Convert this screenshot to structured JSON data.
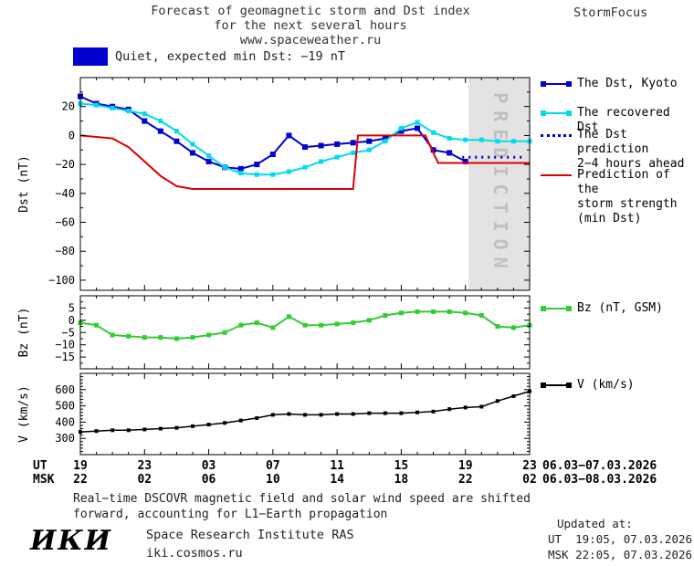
{
  "header": {
    "title_line1": "Forecast of geomagnetic storm and Dst index",
    "title_line2": "for the next several hours",
    "title_line3": "www.spaceweather.ru",
    "brand": "StormFocus"
  },
  "status": {
    "label": "Quiet, expected min Dst: −19 nT",
    "swatch_color": "#0000d0"
  },
  "xaxis": {
    "ut_label": "UT",
    "msk_label": "MSK",
    "tick_hours": [
      0,
      4,
      8,
      12,
      16,
      20,
      24,
      28
    ],
    "ut_ticks": [
      "19",
      "23",
      "03",
      "07",
      "11",
      "15",
      "19",
      "23"
    ],
    "msk_ticks": [
      "22",
      "02",
      "06",
      "10",
      "14",
      "18",
      "22",
      "02"
    ],
    "ut_range": "06.03−07.03.2026",
    "msk_range": "06.03−08.03.2026"
  },
  "chart_data": [
    {
      "type": "line",
      "ylabel": "Dst (nT)",
      "ylim": [
        -100,
        30
      ],
      "yticks": [
        20,
        0,
        -20,
        -40,
        -60,
        -80,
        -100
      ],
      "ytick_labels": [
        "20",
        "0",
        "−20",
        "−40",
        "−60",
        "−80",
        "−100"
      ],
      "xlim_hours": [
        0,
        28
      ],
      "prediction_band": {
        "start_hour": 24.2,
        "end_hour": 28,
        "label": "PREDICTION",
        "fill": "#e3e3e3",
        "text_color": "#bfbfbf"
      },
      "series": [
        {
          "id": "dst_kyoto",
          "name": "The Dst, Kyoto",
          "legend_lines": [
            "The Dst, Kyoto"
          ],
          "color": "#0000d0",
          "marker": "square",
          "marker_size": 6,
          "width": 2,
          "x": [
            0,
            1,
            2,
            3,
            4,
            5,
            6,
            7,
            8,
            9,
            10,
            11,
            12,
            13,
            14,
            15,
            16,
            17,
            18,
            19,
            20,
            21,
            22,
            23,
            24
          ],
          "values": [
            27,
            22,
            20,
            18,
            10,
            3,
            -4,
            -12,
            -18,
            -22,
            -23,
            -20,
            -13,
            0,
            -8,
            -7,
            -6,
            -5,
            -4,
            -2,
            3,
            5,
            -10,
            -12,
            -18
          ]
        },
        {
          "id": "recovered",
          "name": "The recovered Dst",
          "legend_lines": [
            "The recovered Dst"
          ],
          "color": "#00dcec",
          "marker": "square",
          "marker_size": 5,
          "width": 2,
          "x": [
            0,
            1,
            2,
            3,
            4,
            5,
            6,
            7,
            8,
            9,
            10,
            11,
            12,
            13,
            14,
            15,
            16,
            17,
            18,
            19,
            20,
            21,
            22,
            23,
            24,
            25,
            26,
            27,
            28
          ],
          "values": [
            22,
            21,
            19,
            17,
            15,
            10,
            3,
            -6,
            -14,
            -22,
            -26,
            -27,
            -27,
            -25,
            -22,
            -18,
            -15,
            -12,
            -10,
            -4,
            5,
            9,
            2,
            -2,
            -3,
            -3,
            -4,
            -4,
            -4
          ]
        },
        {
          "id": "prediction",
          "name": "The Dst prediction 2−4 hours ahead",
          "legend_lines": [
            "The Dst prediction",
            "2−4 hours ahead"
          ],
          "color": "#0000d0",
          "style": "dotted",
          "width": 3,
          "x": [
            23.8,
            27.6
          ],
          "values": [
            -15,
            -15
          ]
        },
        {
          "id": "storm",
          "name": "Prediction of the storm strength (min Dst)",
          "legend_lines": [
            "Prediction of the",
            "storm strength",
            "(min Dst)"
          ],
          "color": "#dc0000",
          "width": 2,
          "x": [
            0,
            1,
            2,
            3,
            4,
            5,
            6,
            7,
            17,
            17.3,
            21.5,
            22.3,
            28
          ],
          "values": [
            0,
            -1,
            -2,
            -8,
            -18,
            -28,
            -35,
            -37,
            -37,
            0,
            0,
            -19,
            -19
          ]
        }
      ]
    },
    {
      "type": "line",
      "ylabel": "Bz (nT)",
      "ylim": [
        -15,
        5
      ],
      "yticks": [
        5,
        0,
        -5,
        -10,
        -15
      ],
      "ytick_labels": [
        "5",
        "0",
        "−5",
        "−10",
        "−15"
      ],
      "series": [
        {
          "id": "bz",
          "name": "Bz (nT, GSM)",
          "legend_lines": [
            "Bz (nT, GSM)"
          ],
          "color": "#33cc33",
          "marker": "square",
          "marker_size": 5,
          "width": 2,
          "x": [
            0,
            1,
            2,
            3,
            4,
            5,
            6,
            7,
            8,
            9,
            10,
            11,
            12,
            13,
            14,
            15,
            16,
            17,
            18,
            19,
            20,
            21,
            22,
            23,
            24,
            25,
            26,
            27,
            28
          ],
          "values": [
            -1,
            -2,
            -6,
            -6.5,
            -7,
            -7,
            -7.5,
            -7,
            -6,
            -5,
            -2,
            -1,
            -3,
            1.5,
            -2,
            -2,
            -1.5,
            -1,
            0,
            2,
            3,
            3.5,
            3.5,
            3.5,
            3,
            2,
            -2.5,
            -3,
            -2
          ]
        }
      ]
    },
    {
      "type": "line",
      "ylabel": "V (km/s)",
      "ylim": [
        300,
        600
      ],
      "yticks": [
        600,
        500,
        400,
        300
      ],
      "ytick_labels": [
        "600",
        "500",
        "400",
        "300"
      ],
      "series": [
        {
          "id": "v",
          "name": "V (km/s)",
          "legend_lines": [
            "V (km/s)"
          ],
          "color": "#000000",
          "marker": "square",
          "marker_size": 4,
          "width": 1.5,
          "x": [
            0,
            1,
            2,
            3,
            4,
            5,
            6,
            7,
            8,
            9,
            10,
            11,
            12,
            13,
            14,
            15,
            16,
            17,
            18,
            19,
            20,
            21,
            22,
            23,
            24,
            25,
            26,
            27,
            28
          ],
          "values": [
            340,
            345,
            350,
            350,
            355,
            360,
            365,
            375,
            385,
            395,
            410,
            425,
            445,
            450,
            445,
            445,
            450,
            450,
            455,
            455,
            455,
            460,
            465,
            480,
            490,
            495,
            530,
            560,
            590
          ]
        }
      ]
    }
  ],
  "footer": {
    "caption_line1": "Real−time DSCOVR magnetic field and solar wind speed are shifted",
    "caption_line2": "forward, accounting for L1−Earth propagation",
    "logo": "ИКИ",
    "institute": "Space Research Institute RAS",
    "website": "iki.cosmos.ru",
    "updated_label": "Updated at:",
    "updated_ut": "UT  19:05, 07.03.2026",
    "updated_msk": "MSK 22:05, 07.03.2026"
  }
}
